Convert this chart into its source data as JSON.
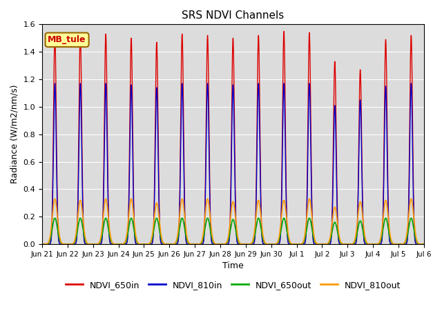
{
  "title": "SRS NDVI Channels",
  "xlabel": "Time",
  "ylabel": "Radiance (W/m2/nm/s)",
  "ylim": [
    0.0,
    1.6
  ],
  "background_color": "#dcdcdc",
  "annotation_text": "MB_tule",
  "annotation_bg": "#ffff99",
  "annotation_edge": "#996600",
  "legend_entries": [
    "NDVI_650in",
    "NDVI_810in",
    "NDVI_650out",
    "NDVI_810out"
  ],
  "line_colors": [
    "#dd0000",
    "#0000cc",
    "#00aa00",
    "#ff9900"
  ],
  "peak_650in": [
    1.52,
    1.53,
    1.53,
    1.5,
    1.47,
    1.53,
    1.52,
    1.5,
    1.52,
    1.55,
    1.54,
    1.33,
    1.27,
    1.49,
    1.52
  ],
  "peak_810in": [
    1.17,
    1.17,
    1.17,
    1.16,
    1.14,
    1.17,
    1.17,
    1.16,
    1.17,
    1.17,
    1.17,
    1.01,
    1.05,
    1.15,
    1.17
  ],
  "peak_650out": [
    0.19,
    0.19,
    0.19,
    0.19,
    0.19,
    0.19,
    0.19,
    0.18,
    0.19,
    0.19,
    0.19,
    0.16,
    0.17,
    0.19,
    0.19
  ],
  "peak_810out": [
    0.33,
    0.32,
    0.33,
    0.33,
    0.3,
    0.33,
    0.33,
    0.31,
    0.32,
    0.32,
    0.33,
    0.27,
    0.31,
    0.32,
    0.33
  ],
  "n_days": 15,
  "points_per_day": 500,
  "peak_hour": 0.5,
  "sigma_in": 0.055,
  "sigma_out": 0.1,
  "xtick_labels": [
    "Jun 21",
    "Jun 22",
    "Jun 23",
    "Jun 24",
    "Jun 25",
    "Jun 26",
    "Jun 27",
    "Jun 28",
    "Jun 29",
    "Jun 30",
    "Jul 1",
    "Jul 2",
    "Jul 3",
    "Jul 4",
    "Jul 5",
    "Jul 6"
  ],
  "figsize": [
    6.4,
    4.8
  ],
  "dpi": 100
}
